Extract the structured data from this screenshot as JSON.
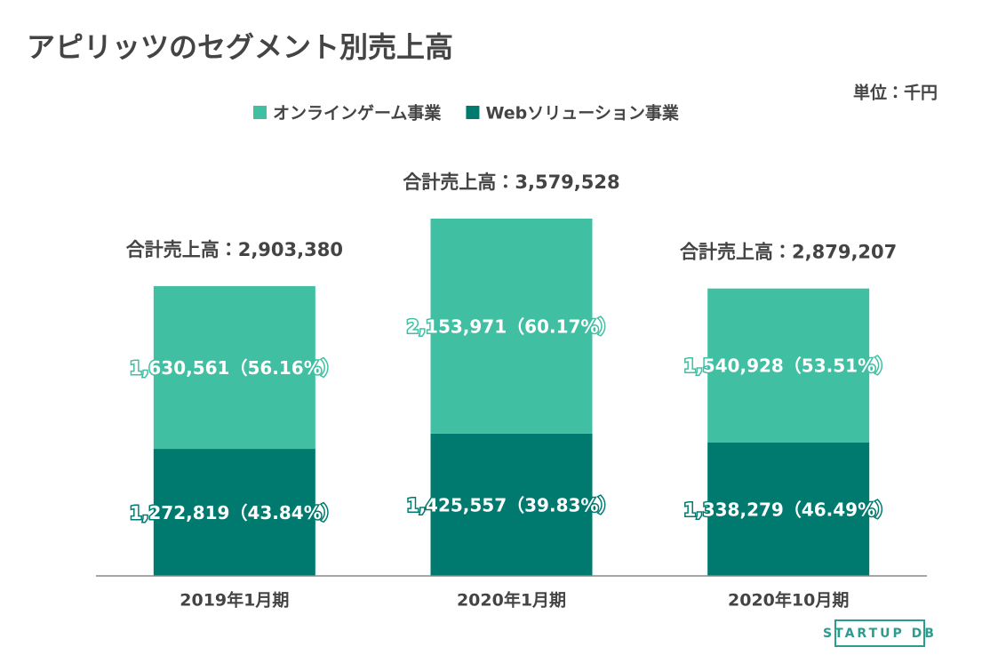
{
  "chart_data": {
    "type": "stacked_bar",
    "title": "アピリッツのセグメント別売上高",
    "unit": "単位：千円",
    "categories": [
      "2019年1月期",
      "2020年1月期",
      "2020年10月期"
    ],
    "series": [
      {
        "name": "Webソリューション事業",
        "color": "#007a6e",
        "values": [
          1272819,
          1425557,
          1338279
        ],
        "value_labels": [
          "1,272,819（43.84%）",
          "1,425,557（39.83%）",
          "1,338,279（46.49%）"
        ]
      },
      {
        "name": "オンラインゲーム事業",
        "color": "#40bfa3",
        "values": [
          1630561,
          2153971,
          1540928
        ],
        "value_labels": [
          "1,630,561（56.16%）",
          "2,153,971（60.17%）",
          "1,540,928（53.51%）"
        ]
      }
    ],
    "total_labels": [
      "合計売上高：2,903,380",
      "合計売上高：3,579,528",
      "合計売上高：2,879,207"
    ],
    "ylim": [
      0,
      4167000
    ],
    "legend": "top"
  },
  "logo": "STARTUP DB"
}
